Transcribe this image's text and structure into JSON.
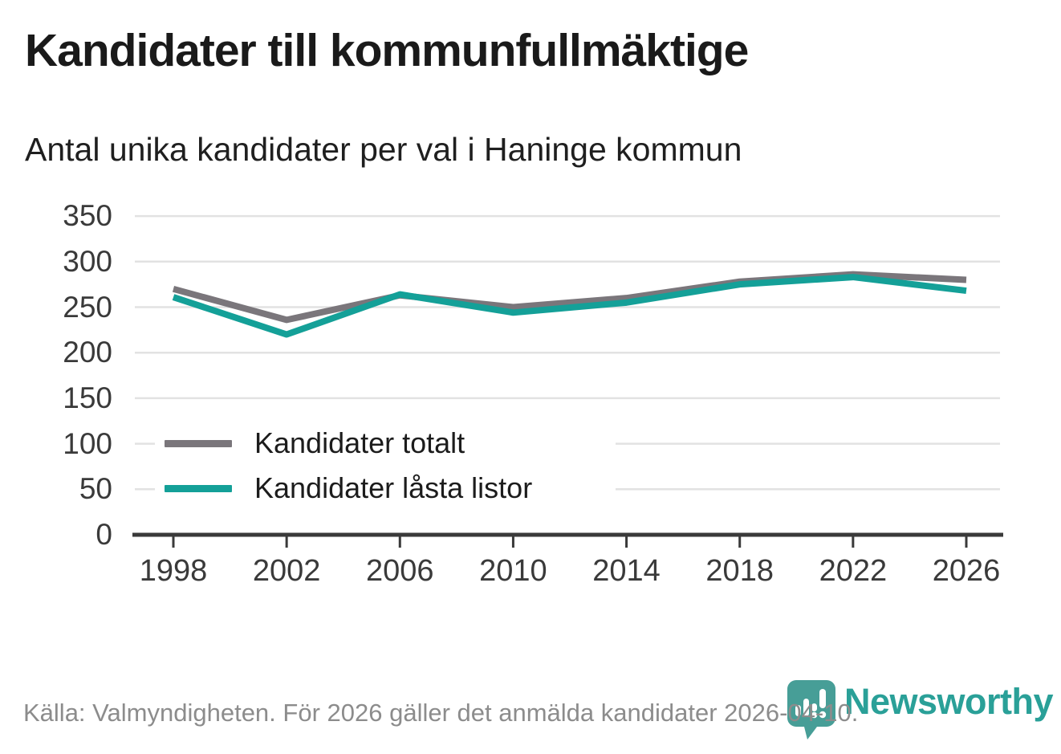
{
  "header": {
    "title": "Kandidater till kommunfullmäktige",
    "subtitle": "Antal unika kandidater per val i Haninge kommun"
  },
  "chart_data": {
    "type": "line",
    "x": [
      1998,
      2002,
      2006,
      2010,
      2014,
      2018,
      2022,
      2026
    ],
    "series": [
      {
        "name": "Kandidater totalt",
        "color": "#7a767b",
        "values": [
          270,
          236,
          263,
          250,
          260,
          278,
          286,
          280
        ]
      },
      {
        "name": "Kandidater låsta listor",
        "color": "#14a098",
        "values": [
          261,
          220,
          264,
          244,
          255,
          275,
          283,
          268
        ]
      }
    ],
    "title": "Kandidater till kommunfullmäktige",
    "subtitle": "Antal unika kandidater per val i Haninge kommun",
    "xlabel": "",
    "ylabel": "",
    "ylim": [
      0,
      350
    ],
    "yticks": [
      0,
      50,
      100,
      150,
      200,
      250,
      300,
      350
    ],
    "grid": true,
    "legend_position": "inside-left"
  },
  "footer": {
    "source": "Källa: Valmyndigheten. För 2026 gäller det anmälda kandidater 2026-04-10.",
    "brand": "Newsworthy"
  },
  "colors": {
    "grid": "#e2e2e2",
    "axis": "#3a3a3a",
    "logo_pin": "#479e97",
    "wordmark": "#2aa098"
  }
}
